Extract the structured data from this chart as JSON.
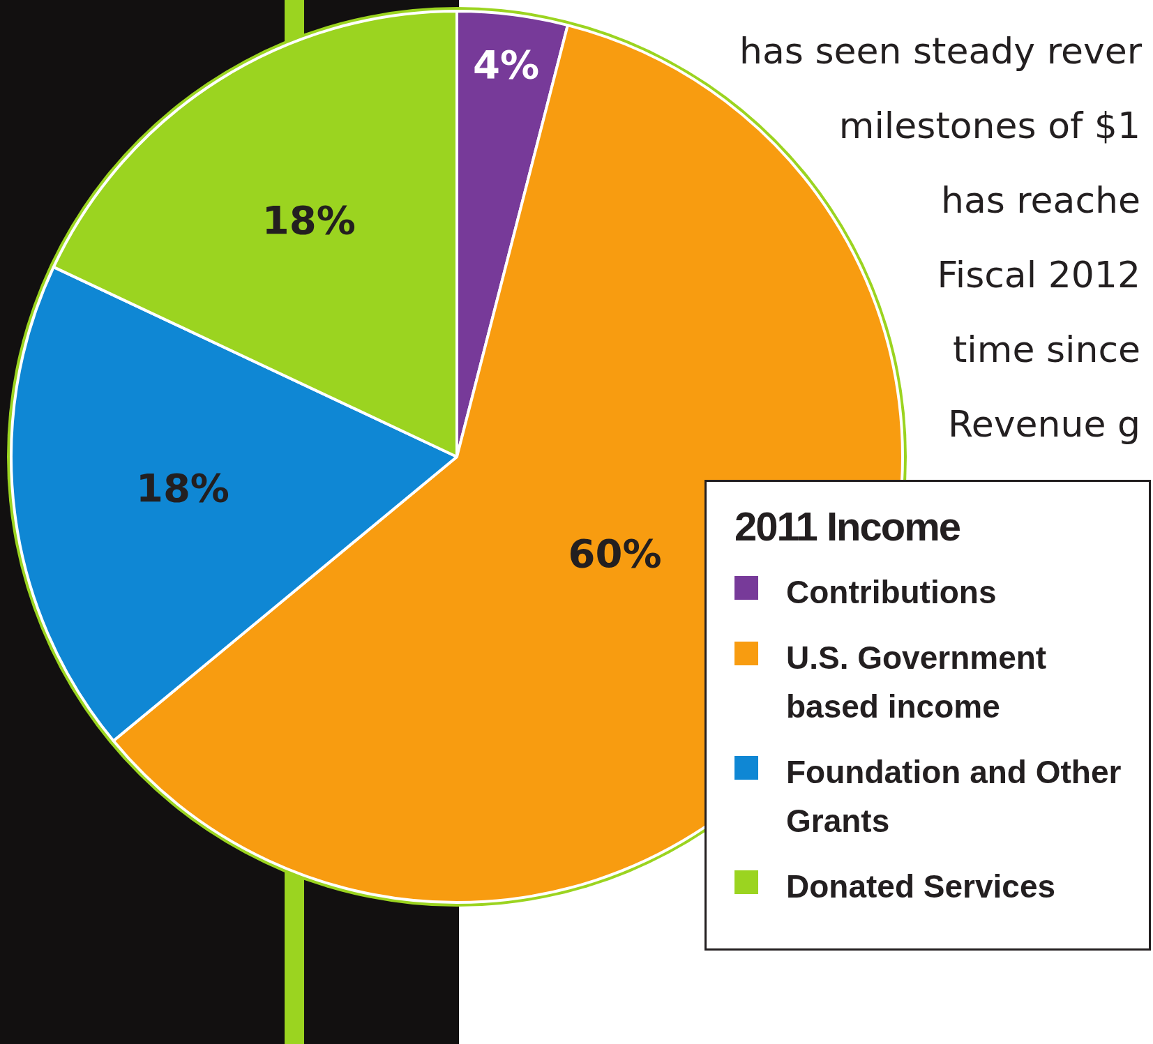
{
  "chart_data": {
    "type": "pie",
    "legend_title": "2011 Income",
    "categories": [
      "Contributions",
      "U.S. Government based income",
      "Foundation and Other Grants",
      "Donated Services"
    ],
    "values": [
      4,
      60,
      18,
      18
    ],
    "colors": [
      "#773a99",
      "#f89c10",
      "#0f87d4",
      "#9bd420"
    ],
    "value_labels": [
      "4%",
      "60%",
      "18%",
      "18%"
    ],
    "legend": "bottom right",
    "annotations": [
      "has seen steady rever",
      "milestones of $1",
      "has reache",
      "Fiscal 2012",
      "time since",
      "Revenue g"
    ]
  }
}
